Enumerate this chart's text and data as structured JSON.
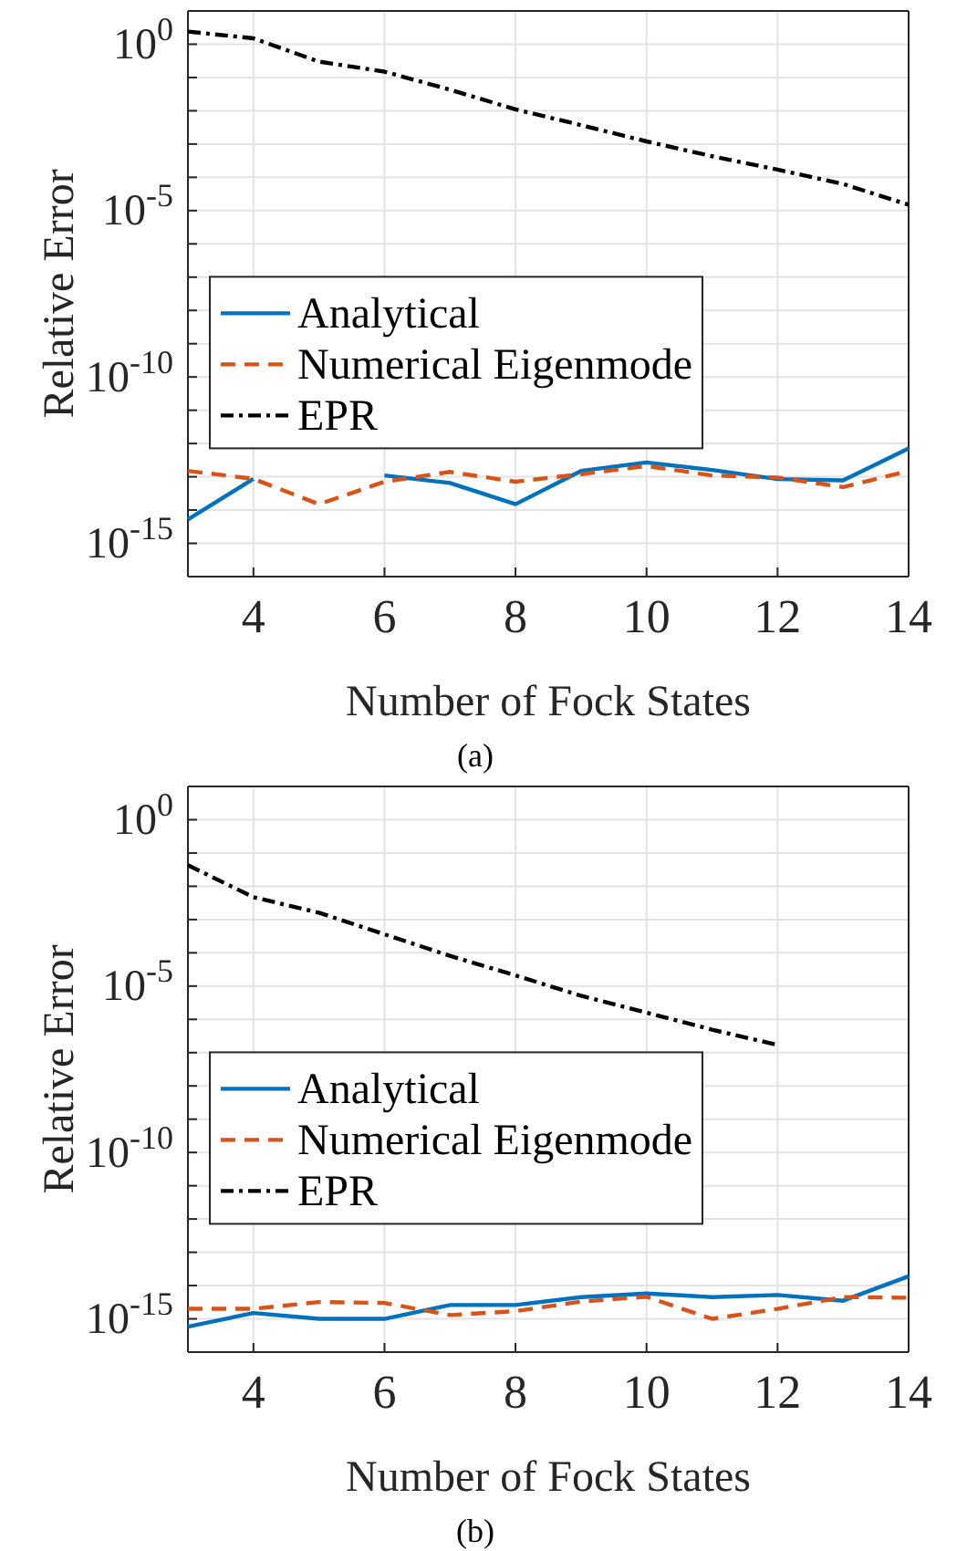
{
  "chart_data": [
    {
      "type": "line",
      "xlabel": "Number of Fock States",
      "ylabel": "Relative Error",
      "annotations": [
        "(a)"
      ],
      "x": [
        3,
        4,
        5,
        6,
        7,
        8,
        9,
        10,
        11,
        12,
        13,
        14
      ],
      "xlim": [
        3,
        14
      ],
      "xticks": [
        4,
        6,
        8,
        10,
        12,
        14
      ],
      "ylim": [
        1e-16,
        10
      ],
      "yticks": [
        {
          "value": 1e-16,
          "label": null
        },
        {
          "value": 1e-15,
          "label": "10$^{-15}$"
        },
        {
          "value": 1e-14,
          "label": null
        },
        {
          "value": 1e-13,
          "label": null
        },
        {
          "value": 1e-12,
          "label": null
        },
        {
          "value": 1e-11,
          "label": null
        },
        {
          "value": 1e-10,
          "label": "10$^{-10}$"
        },
        {
          "value": 1e-09,
          "label": null
        },
        {
          "value": 1e-08,
          "label": null
        },
        {
          "value": 1e-07,
          "label": null
        },
        {
          "value": 1e-06,
          "label": null
        },
        {
          "value": 1e-05,
          "label": "10$^{-5}$"
        },
        {
          "value": 0.0001,
          "label": null
        },
        {
          "value": 0.001,
          "label": null
        },
        {
          "value": 0.01,
          "label": null
        },
        {
          "value": 0.1,
          "label": null
        },
        {
          "value": 1,
          "label": "10$^{0}$"
        },
        {
          "value": 10,
          "label": null
        }
      ],
      "log": "y",
      "grid": true,
      "legend": "center left",
      "marker": "none",
      "series": [
        {
          "name": "Analytical",
          "color": "#0072bd",
          "line_style": "solid",
          "values": [
            5.2e-15,
            8.7e-14,
            null,
            1.1e-13,
            6.5e-14,
            1.5e-14,
            1.5e-13,
            2.7e-13,
            1.6e-13,
            8.5e-14,
            7.8e-14,
            7.1e-13
          ]
        },
        {
          "name": "Numerical Eigenmode",
          "color": "#d95319",
          "line_style": "dashed",
          "values": [
            1.5e-13,
            8.7e-14,
            1.5e-14,
            7.1e-14,
            1.4e-13,
            7.1e-14,
            1.2e-13,
            2.1e-13,
            1.1e-13,
            9.5e-14,
            4.9e-14,
            1.5e-13
          ]
        },
        {
          "name": "EPR",
          "color": "#000000",
          "line_style": "dashdot",
          "values": [
            2.4,
            1.5,
            0.3,
            0.15,
            0.043,
            0.011,
            0.0037,
            0.0012,
            0.00043,
            0.00017,
            6.3e-05,
            1.5e-05
          ]
        }
      ]
    },
    {
      "type": "line",
      "xlabel": "Number of Fock States",
      "ylabel": "Relative Error",
      "annotations": [
        "(b)"
      ],
      "x": [
        3,
        4,
        5,
        6,
        7,
        8,
        9,
        10,
        11,
        12,
        13,
        14
      ],
      "xlim": [
        3,
        14
      ],
      "xticks": [
        4,
        6,
        8,
        10,
        12,
        14
      ],
      "ylim": [
        1e-16,
        10
      ],
      "yticks": [
        {
          "value": 1e-16,
          "label": null
        },
        {
          "value": 1e-15,
          "label": "10$^{-15}$"
        },
        {
          "value": 1e-14,
          "label": null
        },
        {
          "value": 1e-13,
          "label": null
        },
        {
          "value": 1e-12,
          "label": null
        },
        {
          "value": 1e-11,
          "label": null
        },
        {
          "value": 1e-10,
          "label": "10$^{-10}$"
        },
        {
          "value": 1e-09,
          "label": null
        },
        {
          "value": 1e-08,
          "label": null
        },
        {
          "value": 1e-07,
          "label": null
        },
        {
          "value": 1e-06,
          "label": null
        },
        {
          "value": 1e-05,
          "label": "10$^{-5}$"
        },
        {
          "value": 0.0001,
          "label": null
        },
        {
          "value": 0.001,
          "label": null
        },
        {
          "value": 0.01,
          "label": null
        },
        {
          "value": 0.1,
          "label": null
        },
        {
          "value": 1,
          "label": "10$^{0}$"
        },
        {
          "value": 10,
          "label": null
        }
      ],
      "log": "y",
      "grid": true,
      "legend": "center left",
      "marker": "none",
      "series": [
        {
          "name": "Analytical",
          "color": "#0072bd",
          "line_style": "solid",
          "values": [
            5.8e-16,
            1.5e-15,
            1e-15,
            1e-15,
            2.6e-15,
            2.6e-15,
            4.5e-15,
            5.8e-15,
            4.5e-15,
            5.2e-15,
            3.5e-15,
            1.9e-14
          ]
        },
        {
          "name": "Numerical Eigenmode",
          "color": "#d95319",
          "line_style": "dashed",
          "values": [
            2e-15,
            2e-15,
            3.2e-15,
            3e-15,
            1.3e-15,
            1.7e-15,
            3.3e-15,
            4.6e-15,
            1e-15,
            2e-15,
            4.5e-15,
            4.3e-15
          ]
        },
        {
          "name": "EPR",
          "color": "#000000",
          "line_style": "dashdot",
          "values": [
            0.043,
            0.0047,
            0.0016,
            0.00036,
            8.1e-05,
            2.1e-05,
            5.1e-06,
            1.6e-06,
            4.9e-07,
            1.7e-07,
            null,
            null
          ]
        }
      ]
    }
  ]
}
